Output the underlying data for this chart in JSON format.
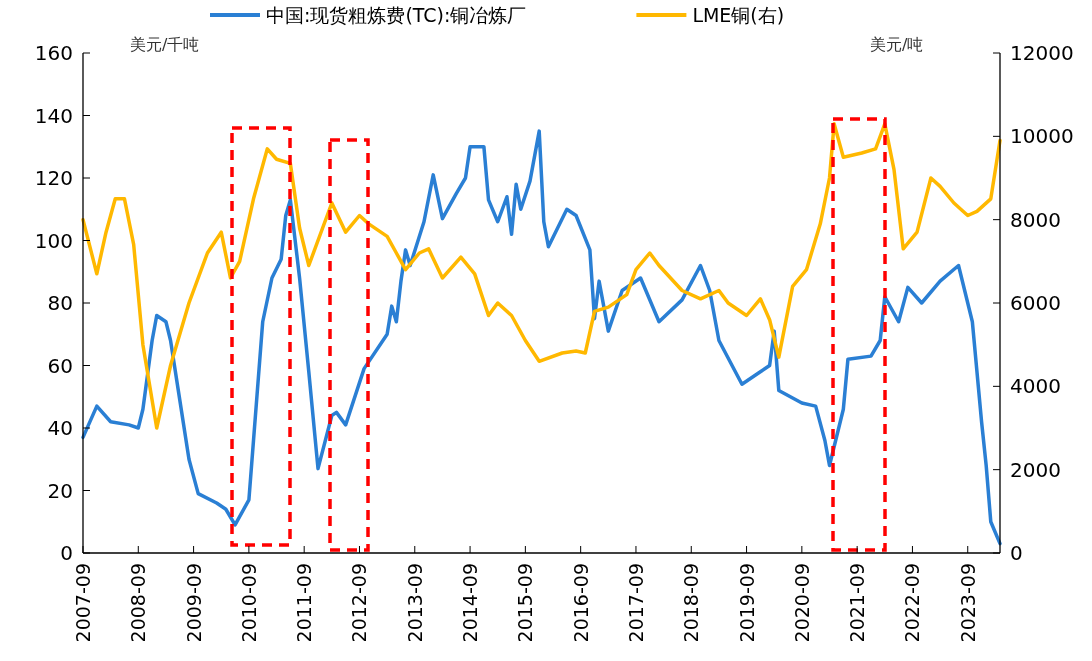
{
  "chart_data": {
    "type": "line",
    "ylabel": "美元/千吨",
    "y2label": "美元/吨",
    "legend": "top",
    "grid": false,
    "xlim": [
      "2007-09",
      "2024-04"
    ],
    "xticks": [
      "2007-09",
      "2008-09",
      "2009-09",
      "2010-09",
      "2011-09",
      "2012-09",
      "2013-09",
      "2014-09",
      "2015-09",
      "2016-09",
      "2017-09",
      "2018-09",
      "2019-09",
      "2020-09",
      "2021-09",
      "2022-09",
      "2023-09"
    ],
    "ylim": [
      0,
      160
    ],
    "yticks": [
      0,
      20,
      40,
      60,
      80,
      100,
      120,
      140,
      160
    ],
    "y2lim": [
      0,
      12000
    ],
    "y2ticks": [
      0,
      2000,
      4000,
      6000,
      8000,
      10000,
      12000
    ],
    "series": [
      {
        "name": "中国:现货粗炼费(TC):铜冶炼厂",
        "color": "#2a7fd4",
        "axis": "y",
        "x": [
          "2007-09",
          "2007-12",
          "2008-03",
          "2008-07",
          "2008-09",
          "2008-10",
          "2008-12",
          "2009-01",
          "2009-03",
          "2009-04",
          "2009-06",
          "2009-08",
          "2009-10",
          "2010-02",
          "2010-04",
          "2010-06",
          "2010-09",
          "2010-10",
          "2010-12",
          "2011-02",
          "2011-04",
          "2011-05",
          "2011-06",
          "2011-08",
          "2011-10",
          "2011-12",
          "2012-03",
          "2012-04",
          "2012-06",
          "2012-10",
          "2013-03",
          "2013-04",
          "2013-05",
          "2013-06",
          "2013-07",
          "2013-08",
          "2013-11",
          "2014-01",
          "2014-03",
          "2014-06",
          "2014-08",
          "2014-09",
          "2014-12",
          "2015-01",
          "2015-03",
          "2015-05",
          "2015-06",
          "2015-07",
          "2015-08",
          "2015-10",
          "2015-12",
          "2016-01",
          "2016-02",
          "2016-06",
          "2016-08",
          "2016-11",
          "2016-12",
          "2017-01",
          "2017-03",
          "2017-06",
          "2017-10",
          "2018-02",
          "2018-07",
          "2018-11",
          "2019-01",
          "2019-03",
          "2019-08",
          "2019-12",
          "2020-02",
          "2020-03",
          "2020-04",
          "2020-09",
          "2020-12",
          "2021-02",
          "2021-03",
          "2021-06",
          "2021-07",
          "2021-12",
          "2022-02",
          "2022-03",
          "2022-06",
          "2022-08",
          "2022-11",
          "2023-03",
          "2023-07",
          "2023-10",
          "2023-12",
          "2024-01",
          "2024-02",
          "2024-04"
        ],
        "values": [
          37,
          47,
          42,
          41,
          40,
          46,
          68,
          76,
          74,
          68,
          49,
          30,
          19,
          16,
          14,
          9,
          17,
          36,
          74,
          88,
          94,
          108,
          113,
          88,
          58,
          27,
          44,
          45,
          41,
          59,
          70,
          79,
          74,
          87,
          97,
          92,
          106,
          121,
          107,
          115,
          120,
          130,
          130,
          113,
          106,
          114,
          102,
          118,
          110,
          119,
          135,
          106,
          98,
          110,
          108,
          97,
          75,
          87,
          71,
          84,
          88,
          74,
          81,
          92,
          84,
          68,
          54,
          58,
          60,
          71,
          52,
          48,
          47,
          36,
          28,
          46,
          62,
          63,
          68,
          82,
          74,
          85,
          80,
          87,
          92,
          74,
          42,
          28,
          10,
          3
        ]
      },
      {
        "name": "LME铜(右)",
        "color": "#ffb800",
        "axis": "y2",
        "x": [
          "2007-09",
          "2007-12",
          "2008-02",
          "2008-04",
          "2008-06",
          "2008-08",
          "2008-10",
          "2009-01",
          "2009-04",
          "2009-08",
          "2009-12",
          "2010-03",
          "2010-05",
          "2010-07",
          "2010-10",
          "2011-01",
          "2011-03",
          "2011-06",
          "2011-08",
          "2011-10",
          "2012-03",
          "2012-06",
          "2012-09",
          "2012-11",
          "2013-03",
          "2013-05",
          "2013-07",
          "2013-10",
          "2013-12",
          "2014-03",
          "2014-07",
          "2014-10",
          "2015-01",
          "2015-03",
          "2015-06",
          "2015-09",
          "2015-12",
          "2016-05",
          "2016-08",
          "2016-10",
          "2016-12",
          "2017-03",
          "2017-07",
          "2017-09",
          "2017-12",
          "2018-02",
          "2018-07",
          "2018-11",
          "2019-03",
          "2019-05",
          "2019-09",
          "2019-12",
          "2020-02",
          "2020-04",
          "2020-07",
          "2020-10",
          "2021-01",
          "2021-03",
          "2021-04",
          "2021-06",
          "2021-10",
          "2022-01",
          "2022-03",
          "2022-05",
          "2022-07",
          "2022-10",
          "2023-01",
          "2023-03",
          "2023-06",
          "2023-09",
          "2023-11",
          "2024-02",
          "2024-04"
        ],
        "values": [
          8000,
          6700,
          7700,
          8500,
          8500,
          7400,
          5000,
          3000,
          4500,
          6000,
          7200,
          7700,
          6600,
          7000,
          8500,
          9700,
          9450,
          9350,
          7800,
          6900,
          8400,
          7700,
          8100,
          7900,
          7600,
          7200,
          6800,
          7200,
          7300,
          6600,
          7100,
          6700,
          5700,
          6000,
          5700,
          5100,
          4600,
          4800,
          4850,
          4800,
          5800,
          5900,
          6200,
          6800,
          7200,
          6900,
          6300,
          6100,
          6300,
          6000,
          5700,
          6100,
          5600,
          4700,
          6400,
          6800,
          7900,
          9000,
          10300,
          9500,
          9600,
          9700,
          10300,
          9200,
          7300,
          7700,
          9000,
          8800,
          8400,
          8100,
          8200,
          8500,
          9900
        ]
      }
    ]
  }
}
